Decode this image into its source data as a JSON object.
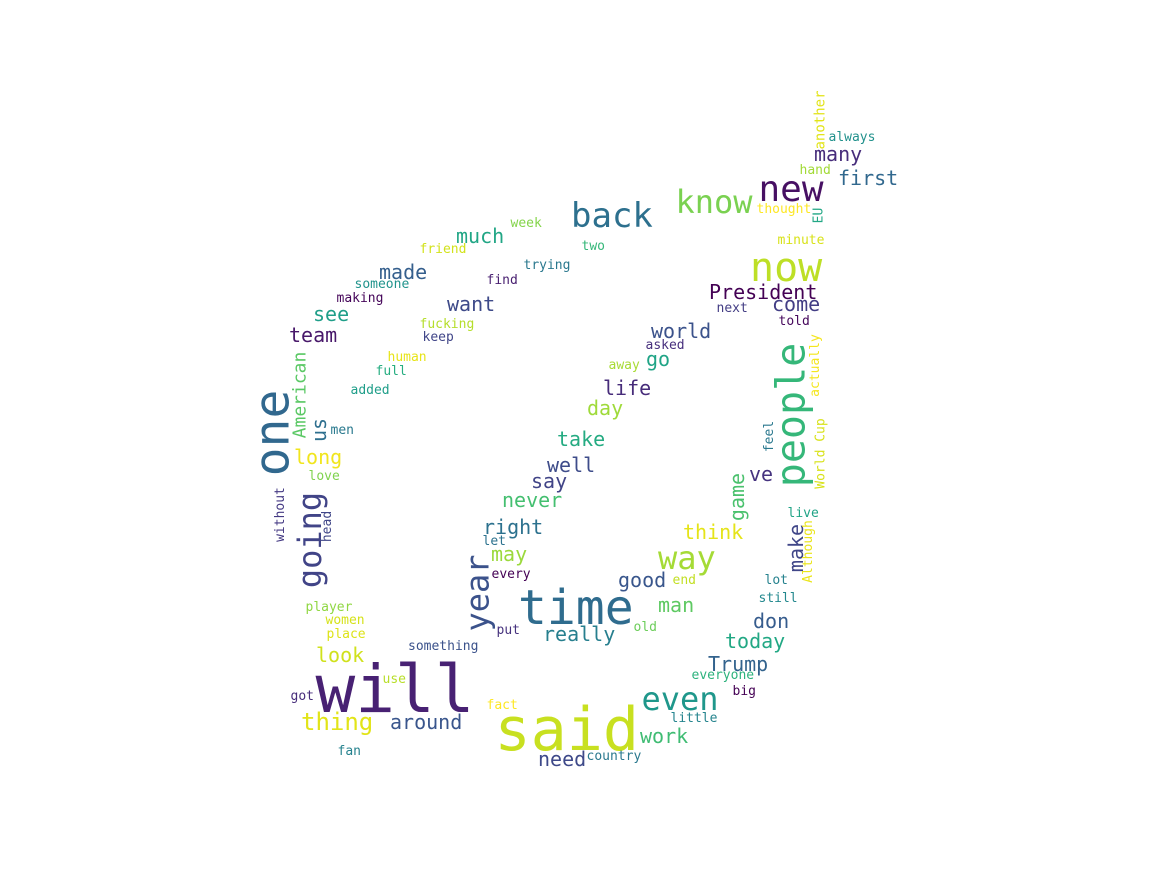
{
  "words": [
    {
      "text": "will",
      "color": "#482173"
    },
    {
      "text": "said",
      "color": "#c8e020"
    },
    {
      "text": "time",
      "color": "#2f6c8e"
    },
    {
      "text": "one",
      "color": "#31688e"
    },
    {
      "text": "people",
      "color": "#35b779"
    },
    {
      "text": "now",
      "color": "#bddf26"
    },
    {
      "text": "new",
      "color": "#471063"
    },
    {
      "text": "back",
      "color": "#2d708e"
    },
    {
      "text": "know",
      "color": "#7ad151"
    },
    {
      "text": "way",
      "color": "#a5db36"
    },
    {
      "text": "even",
      "color": "#1f978b"
    },
    {
      "text": "year",
      "color": "#3b528b"
    },
    {
      "text": "going",
      "color": "#414487"
    },
    {
      "text": "President",
      "color": "#440154"
    },
    {
      "text": "first",
      "color": "#31688e"
    },
    {
      "text": "many",
      "color": "#472d7b"
    },
    {
      "text": "much",
      "color": "#21a685"
    },
    {
      "text": "made",
      "color": "#355f8d"
    },
    {
      "text": "want",
      "color": "#3e4a89"
    },
    {
      "text": "see",
      "color": "#1f9e89"
    },
    {
      "text": "team",
      "color": "#48186a"
    },
    {
      "text": "come",
      "color": "#433e85"
    },
    {
      "text": "world",
      "color": "#3b528b"
    },
    {
      "text": "go",
      "color": "#20a486"
    },
    {
      "text": "life",
      "color": "#472c7a"
    },
    {
      "text": "day",
      "color": "#9fda3a"
    },
    {
      "text": "take",
      "color": "#25ab82"
    },
    {
      "text": "well",
      "color": "#3e4c8a"
    },
    {
      "text": "say",
      "color": "#414487"
    },
    {
      "text": "never",
      "color": "#44bf70"
    },
    {
      "text": "right",
      "color": "#2c718e"
    },
    {
      "text": "may",
      "color": "#9bd93c"
    },
    {
      "text": "good",
      "color": "#39568c"
    },
    {
      "text": "man",
      "color": "#5ec962"
    },
    {
      "text": "really",
      "color": "#277f8e"
    },
    {
      "text": "think",
      "color": "#e5e419"
    },
    {
      "text": "ve",
      "color": "#46337f"
    },
    {
      "text": "game",
      "color": "#4ac16d"
    },
    {
      "text": "make",
      "color": "#404688"
    },
    {
      "text": "don",
      "color": "#365c8d"
    },
    {
      "text": "today",
      "color": "#22a884"
    },
    {
      "text": "Trump",
      "color": "#33638d"
    },
    {
      "text": "look",
      "color": "#d0e11c"
    },
    {
      "text": "thing",
      "color": "#e2e418"
    },
    {
      "text": "around",
      "color": "#39558c"
    },
    {
      "text": "work",
      "color": "#3fbc73"
    },
    {
      "text": "need",
      "color": "#3e4989"
    },
    {
      "text": "long",
      "color": "#f1e51d"
    },
    {
      "text": "us",
      "color": "#2e6f8e"
    },
    {
      "text": "American",
      "color": "#5ac864"
    },
    {
      "text": "another",
      "color": "#e2e418"
    },
    {
      "text": "always",
      "color": "#21918c"
    },
    {
      "text": "hand",
      "color": "#a2da37"
    },
    {
      "text": "thought",
      "color": "#fde725"
    },
    {
      "text": "EU",
      "color": "#22a785"
    },
    {
      "text": "minute",
      "color": "#d8e219"
    },
    {
      "text": "week",
      "color": "#84d44b"
    },
    {
      "text": "two",
      "color": "#35b779"
    },
    {
      "text": "friend",
      "color": "#d2e21b"
    },
    {
      "text": "trying",
      "color": "#2a788e"
    },
    {
      "text": "find",
      "color": "#481f70"
    },
    {
      "text": "someone",
      "color": "#20938c"
    },
    {
      "text": "making",
      "color": "#450559"
    },
    {
      "text": "fucking",
      "color": "#b5de2b"
    },
    {
      "text": "keep",
      "color": "#404588"
    },
    {
      "text": "next",
      "color": "#433d84"
    },
    {
      "text": "told",
      "color": "#46085c"
    },
    {
      "text": "asked",
      "color": "#472f7d"
    },
    {
      "text": "human",
      "color": "#e7e419"
    },
    {
      "text": "full",
      "color": "#26ad81"
    },
    {
      "text": "added",
      "color": "#1f9e89"
    },
    {
      "text": "away",
      "color": "#a8db34"
    },
    {
      "text": "actually",
      "color": "#f4e61e"
    },
    {
      "text": "men",
      "color": "#29798e"
    },
    {
      "text": "feel",
      "color": "#2a788e"
    },
    {
      "text": "World Cup",
      "color": "#d8e219"
    },
    {
      "text": "love",
      "color": "#7fd34e"
    },
    {
      "text": "without",
      "color": "#443983"
    },
    {
      "text": "head",
      "color": "#404688"
    },
    {
      "text": "live",
      "color": "#20a386"
    },
    {
      "text": "Although",
      "color": "#eae51a"
    },
    {
      "text": "let",
      "color": "#2c728e"
    },
    {
      "text": "every",
      "color": "#440154"
    },
    {
      "text": "end",
      "color": "#c2df23"
    },
    {
      "text": "lot",
      "color": "#26828e"
    },
    {
      "text": "still",
      "color": "#23888e"
    },
    {
      "text": "player",
      "color": "#90d743"
    },
    {
      "text": "women",
      "color": "#d5e21a"
    },
    {
      "text": "place",
      "color": "#dde318"
    },
    {
      "text": "put",
      "color": "#46327e"
    },
    {
      "text": "old",
      "color": "#6ccd5a"
    },
    {
      "text": "something",
      "color": "#3b528b"
    },
    {
      "text": "use",
      "color": "#b8de29"
    },
    {
      "text": "everyone",
      "color": "#2db27d"
    },
    {
      "text": "big",
      "color": "#440154"
    },
    {
      "text": "got",
      "color": "#472d7b"
    },
    {
      "text": "fact",
      "color": "#fde725"
    },
    {
      "text": "little",
      "color": "#25848e"
    },
    {
      "text": "fan",
      "color": "#26828e"
    },
    {
      "text": "country",
      "color": "#2a788e"
    }
  ]
}
